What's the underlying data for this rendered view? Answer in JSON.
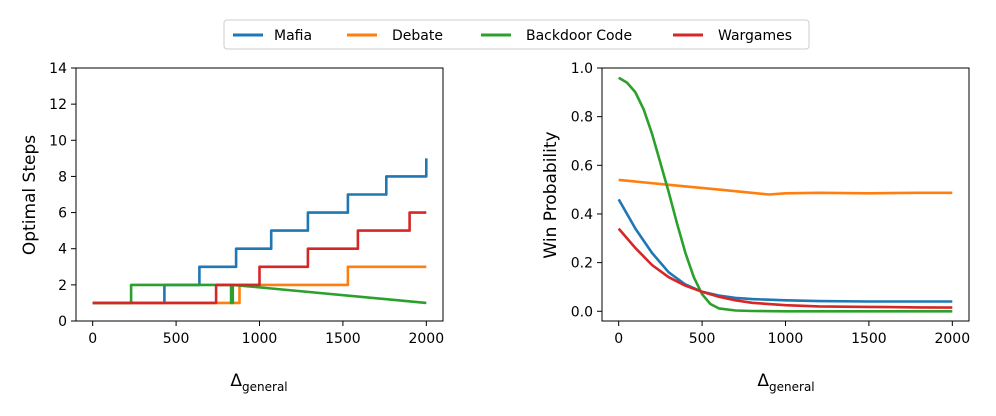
{
  "chart_data": [
    {
      "type": "line",
      "step": true,
      "xlabel": "Δ",
      "xlabel_sub": "general",
      "ylabel": "Optimal Steps",
      "xlim": [
        -100,
        2100
      ],
      "ylim": [
        0,
        14
      ],
      "xticks": [
        0,
        500,
        1000,
        1500,
        2000
      ],
      "yticks": [
        0,
        2,
        4,
        6,
        8,
        10,
        12,
        14
      ],
      "grid": false,
      "series": [
        {
          "name": "Mafia",
          "color": "#1f77b4",
          "x": [
            0,
            430,
            430,
            640,
            640,
            860,
            860,
            1070,
            1070,
            1290,
            1290,
            1530,
            1530,
            1760,
            1760,
            2000,
            2000
          ],
          "y": [
            1,
            1,
            2,
            2,
            3,
            3,
            4,
            4,
            5,
            5,
            6,
            6,
            7,
            7,
            8,
            8,
            9
          ]
        },
        {
          "name": "Debate",
          "color": "#ff7f0e",
          "x": [
            0,
            880,
            880,
            1530,
            1530,
            2000
          ],
          "y": [
            1,
            1,
            2,
            2,
            3,
            3
          ]
        },
        {
          "name": "Backdoor Code",
          "color": "#2ca02c",
          "x": [
            0,
            230,
            230,
            830,
            830,
            840,
            840,
            2000
          ],
          "y": [
            1,
            1,
            2,
            2,
            1,
            1,
            2,
            1
          ]
        },
        {
          "name": "Wargames",
          "color": "#d62728",
          "x": [
            0,
            740,
            740,
            1000,
            1000,
            1290,
            1290,
            1590,
            1590,
            1900,
            1900,
            2000
          ],
          "y": [
            1,
            1,
            2,
            2,
            3,
            3,
            4,
            4,
            5,
            5,
            6,
            6
          ]
        }
      ]
    },
    {
      "type": "line",
      "xlabel": "Δ",
      "xlabel_sub": "general",
      "ylabel": "Win Probability",
      "xlim": [
        -100,
        2100
      ],
      "ylim": [
        -0.04,
        1.0
      ],
      "xticks": [
        0,
        500,
        1000,
        1500,
        2000
      ],
      "yticks": [
        0.0,
        0.2,
        0.4,
        0.6,
        0.8,
        1.0
      ],
      "ytick_labels": [
        "0.0",
        "0.2",
        "0.4",
        "0.6",
        "0.8",
        "1.0"
      ],
      "grid": false,
      "series": [
        {
          "name": "Mafia",
          "color": "#1f77b4",
          "x": [
            0,
            100,
            200,
            300,
            400,
            500,
            600,
            700,
            800,
            1000,
            1200,
            1500,
            1800,
            2000
          ],
          "y": [
            0.46,
            0.34,
            0.24,
            0.16,
            0.11,
            0.08,
            0.065,
            0.055,
            0.05,
            0.045,
            0.042,
            0.04,
            0.04,
            0.04
          ]
        },
        {
          "name": "Debate",
          "color": "#ff7f0e",
          "x": [
            0,
            300,
            600,
            900,
            1000,
            1200,
            1500,
            1800,
            2000
          ],
          "y": [
            0.54,
            0.52,
            0.5,
            0.48,
            0.485,
            0.487,
            0.485,
            0.487,
            0.487
          ]
        },
        {
          "name": "Backdoor Code",
          "color": "#2ca02c",
          "x": [
            0,
            50,
            100,
            150,
            200,
            250,
            300,
            350,
            400,
            450,
            500,
            550,
            600,
            700,
            800,
            1000,
            1500,
            2000
          ],
          "y": [
            0.96,
            0.94,
            0.9,
            0.83,
            0.73,
            0.61,
            0.49,
            0.36,
            0.24,
            0.14,
            0.07,
            0.03,
            0.012,
            0.003,
            0.001,
            0.0,
            0.0,
            0.0
          ]
        },
        {
          "name": "Wargames",
          "color": "#d62728",
          "x": [
            0,
            100,
            200,
            300,
            400,
            500,
            600,
            700,
            800,
            1000,
            1200,
            1500,
            1800,
            2000
          ],
          "y": [
            0.34,
            0.26,
            0.19,
            0.14,
            0.105,
            0.08,
            0.06,
            0.045,
            0.035,
            0.025,
            0.02,
            0.018,
            0.016,
            0.015
          ]
        }
      ]
    }
  ]
}
